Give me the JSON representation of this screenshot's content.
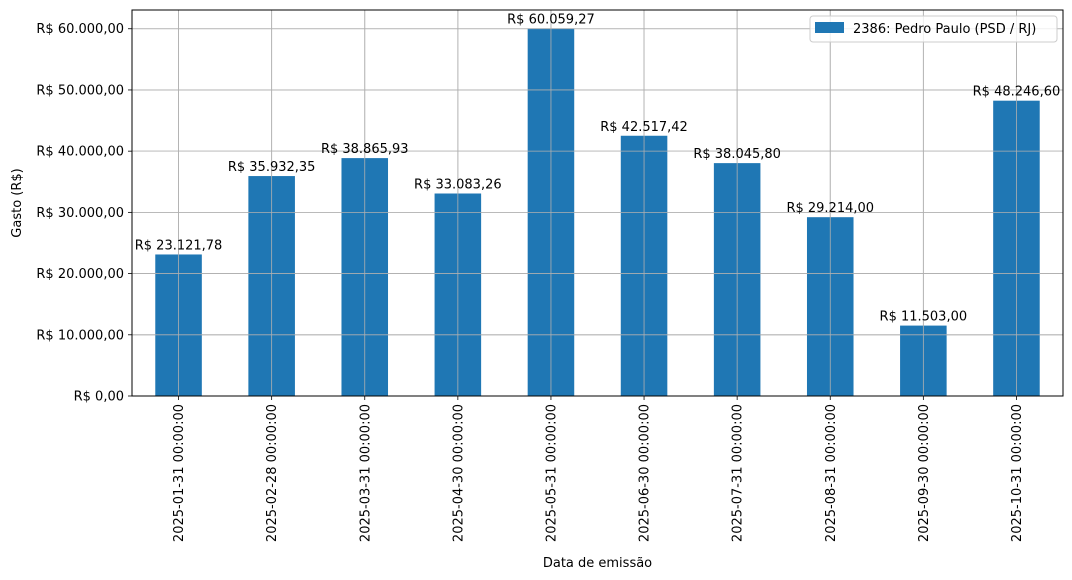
{
  "chart_data": {
    "type": "bar",
    "xlabel": "Data de emissão",
    "ylabel": "Gasto (R$)",
    "categories": [
      "2025-01-31 00:00:00",
      "2025-02-28 00:00:00",
      "2025-03-31 00:00:00",
      "2025-04-30 00:00:00",
      "2025-05-31 00:00:00",
      "2025-06-30 00:00:00",
      "2025-07-31 00:00:00",
      "2025-08-31 00:00:00",
      "2025-09-30 00:00:00",
      "2025-10-31 00:00:00"
    ],
    "series": [
      {
        "name": "2386: Pedro Paulo (PSD / RJ)",
        "color": "#1f77b4",
        "values": [
          23121.78,
          35932.35,
          38865.93,
          33083.26,
          60059.27,
          42517.42,
          38045.8,
          29214.0,
          11503.0,
          48246.6
        ]
      }
    ],
    "data_labels": [
      "R$ 23.121,78",
      "R$ 35.932,35",
      "R$ 38.865,93",
      "R$ 33.083,26",
      "R$ 60.059,27",
      "R$ 42.517,42",
      "R$ 38.045,80",
      "R$ 29.214,00",
      "R$ 11.503,00",
      "R$ 48.246,60"
    ],
    "yticks": [
      0,
      10000,
      20000,
      30000,
      40000,
      50000,
      60000
    ],
    "ytick_labels": [
      "R$ 0,00",
      "R$ 10.000,00",
      "R$ 20.000,00",
      "R$ 30.000,00",
      "R$ 40.000,00",
      "R$ 50.000,00",
      "R$ 60.000,00"
    ],
    "ylim": [
      0,
      63062.23
    ],
    "grid": true,
    "legend_position": "top-right"
  }
}
